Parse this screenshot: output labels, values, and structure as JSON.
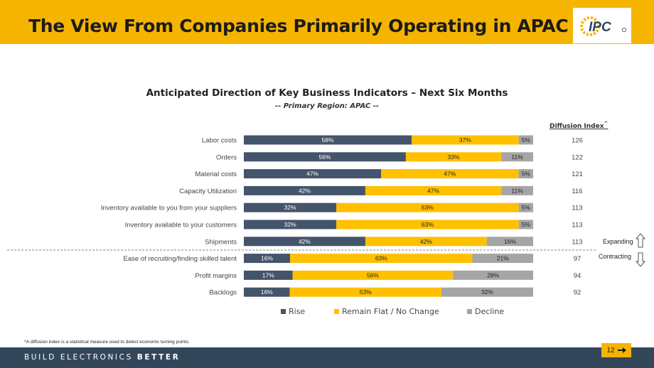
{
  "header": {
    "title": "The View From Companies Primarily Operating in APAC",
    "logo_text": "IPC"
  },
  "chart_data": {
    "type": "bar",
    "orientation": "horizontal",
    "stacked": true,
    "percent": true,
    "title": "Anticipated Direction of Key Business Indicators – Next Six Months",
    "subtitle": "-- Primary Region: APAC --",
    "categories": [
      "Labor costs",
      "Orders",
      "Material costs",
      "Capacity Utilization",
      "Inventory available to you from your suppliers",
      "Inventory available to your customers",
      "Shipments",
      "Ease of recruiting/finding skilled talent",
      "Profit margins",
      "Backlogs"
    ],
    "series": [
      {
        "name": "Rise",
        "color": "#44546a",
        "values": [
          58,
          56,
          47,
          42,
          32,
          32,
          42,
          16,
          17,
          16
        ],
        "labels": [
          "58%",
          "56%",
          "47%",
          "42%",
          "32%",
          "32%",
          "42%",
          "16%",
          "17%",
          "16%"
        ]
      },
      {
        "name": "Remain Flat / No Change",
        "color": "#ffc000",
        "values": [
          37,
          33,
          47,
          47,
          63,
          63,
          42,
          63,
          56,
          53
        ],
        "labels": [
          "37%",
          "33%",
          "47%",
          "47%",
          "63%",
          "63%",
          "42%",
          "63%",
          "56%",
          "53%"
        ]
      },
      {
        "name": "Decline",
        "color": "#a5a5a5",
        "values": [
          5,
          11,
          5,
          11,
          5,
          5,
          16,
          21,
          28,
          32
        ],
        "labels": [
          "5%",
          "11%",
          "5%",
          "11%",
          "5%",
          "5%",
          "16%",
          "21%",
          "28%",
          "32%"
        ]
      }
    ],
    "diffusion_index": {
      "header": "Diffusion Index",
      "marker": "^",
      "values": [
        126,
        122,
        121,
        116,
        113,
        113,
        113,
        97,
        94,
        92
      ]
    },
    "threshold_labels": {
      "above": "Expanding",
      "below": "Contracting"
    },
    "legend_position": "bottom"
  },
  "footnote": "^A diffusion index is a statistical measure used to detect economic turning points.",
  "footer": {
    "tagline_regular": "BUILD ELECTRONICS ",
    "tagline_bold": "BETTER",
    "page_number": "12"
  }
}
